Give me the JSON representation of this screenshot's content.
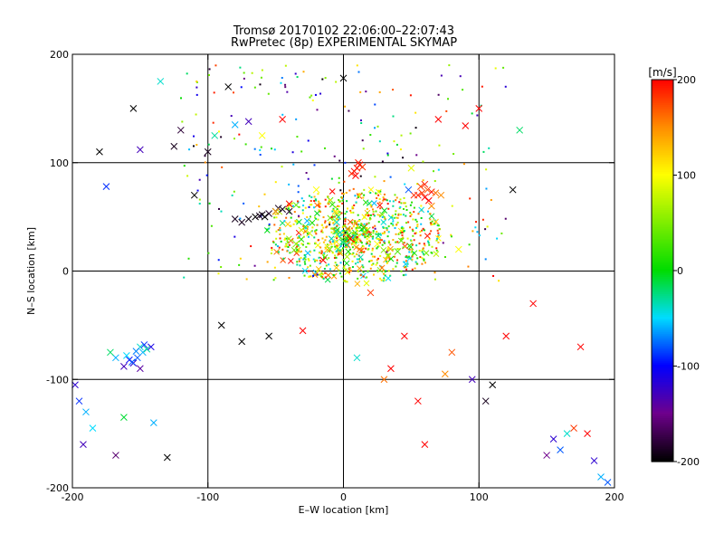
{
  "chart_data": {
    "type": "scatter",
    "title": "Tromsø 20170102 22:06:00–22:07:43",
    "subtitle": "RwPretec (8p) EXPERIMENTAL SKYMAP",
    "xlabel": "E–W location [km]",
    "ylabel": "N–S location [km]",
    "xlim": [
      -200,
      200
    ],
    "ylim": [
      -200,
      200
    ],
    "x_ticks": [
      -200,
      -100,
      0,
      100,
      200
    ],
    "y_ticks": [
      -200,
      -100,
      0,
      100,
      200
    ],
    "grid": true,
    "colorbar": {
      "label": "[m/s]",
      "range": [
        -200,
        200
      ],
      "ticks": [
        -200,
        -100,
        0,
        100,
        200
      ]
    },
    "clusters": [
      {
        "x": [
          -80,
          -60,
          -50,
          -45,
          -55,
          -65,
          -75,
          -70,
          -40,
          -48,
          -58,
          -62
        ],
        "y": [
          48,
          52,
          55,
          57,
          53,
          50,
          45,
          48,
          55,
          58,
          50,
          51
        ],
        "v": [
          -190,
          -195,
          -200,
          -190,
          -185,
          -200,
          -190,
          -195,
          -180,
          -190,
          -200,
          -190
        ]
      },
      {
        "x": [
          -150,
          -148,
          -152,
          -155,
          -145,
          -160,
          -158,
          -162,
          -147,
          -153,
          -168,
          -172,
          -142,
          -150,
          -156
        ],
        "y": [
          -70,
          -75,
          -80,
          -85,
          -72,
          -78,
          -82,
          -88,
          -68,
          -74,
          -80,
          -75,
          -70,
          -90,
          -84
        ],
        "v": [
          -40,
          -60,
          -80,
          -120,
          -30,
          -50,
          -100,
          -130,
          -90,
          -70,
          -60,
          -20,
          -110,
          -140,
          -80
        ]
      },
      {
        "x": [
          55,
          58,
          60,
          62,
          65,
          52,
          57,
          63,
          68,
          60,
          48,
          72
        ],
        "y": [
          70,
          72,
          68,
          75,
          73,
          70,
          78,
          65,
          72,
          80,
          75,
          70
        ],
        "v": [
          190,
          180,
          200,
          170,
          195,
          185,
          175,
          200,
          160,
          190,
          -80,
          150
        ]
      },
      {
        "x": [
          8,
          10,
          12,
          6,
          14,
          9,
          11
        ],
        "y": [
          92,
          95,
          98,
          90,
          96,
          88,
          100
        ],
        "v": [
          200,
          190,
          195,
          185,
          180,
          200,
          190
        ]
      }
    ],
    "scatter_x": [
      -198,
      -195,
      -192,
      -190,
      -185,
      -180,
      -175,
      -168,
      -162,
      -155,
      -150,
      -140,
      -135,
      -130,
      -125,
      -120,
      -110,
      -100,
      -95,
      -90,
      -85,
      -80,
      -75,
      -70,
      -60,
      -55,
      -50,
      -45,
      -40,
      -35,
      -30,
      -25,
      -20,
      -15,
      -10,
      -5,
      0,
      5,
      10,
      15,
      20,
      25,
      30,
      35,
      40,
      45,
      50,
      55,
      60,
      65,
      70,
      75,
      80,
      85,
      90,
      95,
      100,
      105,
      110,
      120,
      125,
      130,
      140,
      150,
      155,
      160,
      165,
      170,
      175,
      180,
      185,
      190,
      195
    ],
    "scatter_y": [
      -105,
      -120,
      -160,
      -130,
      -145,
      110,
      78,
      -170,
      -135,
      150,
      112,
      -140,
      175,
      -172,
      115,
      130,
      70,
      110,
      125,
      -50,
      170,
      135,
      -65,
      138,
      125,
      -60,
      55,
      140,
      62,
      25,
      -55,
      35,
      75,
      10,
      20,
      45,
      178,
      30,
      -80,
      40,
      -20,
      25,
      -100,
      -90,
      18,
      -60,
      95,
      -120,
      -160,
      60,
      140,
      -95,
      -75,
      20,
      134,
      -100,
      150,
      -120,
      -105,
      -60,
      75,
      130,
      -30,
      -170,
      -155,
      -165,
      -150,
      -145,
      -70,
      -150,
      -175,
      -190,
      -195
    ],
    "scatter_v": [
      -120,
      -90,
      -130,
      -60,
      -50,
      -200,
      -90,
      -160,
      -10,
      -200,
      -130,
      -60,
      -40,
      -200,
      -190,
      -180,
      -200,
      -190,
      -30,
      -200,
      -200,
      -60,
      -200,
      -130,
      100,
      -200,
      140,
      200,
      200,
      50,
      200,
      80,
      100,
      200,
      50,
      -40,
      -200,
      200,
      -40,
      0,
      180,
      100,
      160,
      200,
      30,
      200,
      90,
      200,
      200,
      150,
      200,
      150,
      170,
      100,
      200,
      -130,
      200,
      -190,
      -200,
      200,
      -200,
      -20,
      200,
      -150,
      -120,
      -80,
      -40,
      180,
      200,
      200,
      -120,
      -60,
      -80
    ]
  }
}
